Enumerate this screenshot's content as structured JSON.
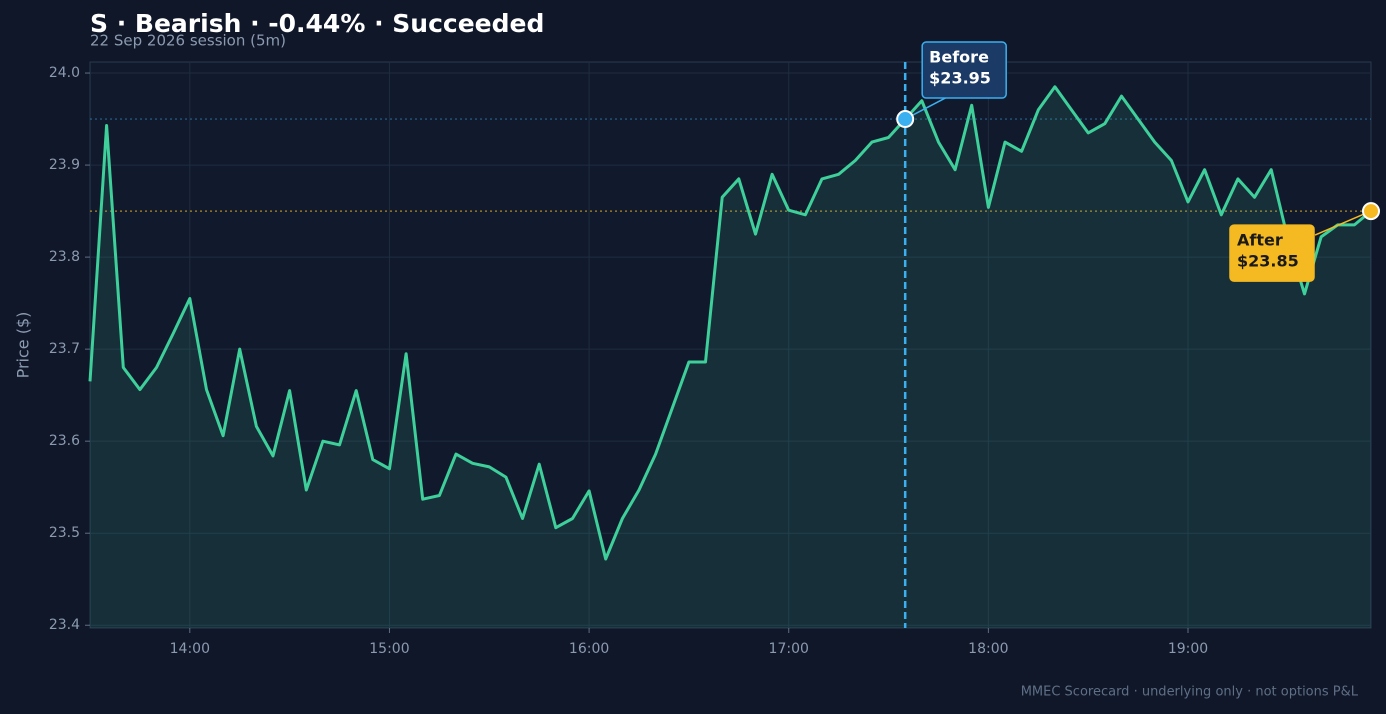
{
  "chart_data": {
    "type": "line",
    "title": "S · Bearish · -0.44% · Succeeded",
    "subtitle": "22 Sep 2026 session (5m)",
    "y_label": "Price ($)",
    "footer": "MMEC Scorecard · underlying only · not options P&L",
    "x": [
      "13:30",
      "13:35",
      "13:40",
      "13:45",
      "13:50",
      "13:55",
      "14:00",
      "14:05",
      "14:10",
      "14:15",
      "14:20",
      "14:25",
      "14:30",
      "14:35",
      "14:40",
      "14:45",
      "14:50",
      "14:55",
      "15:00",
      "15:05",
      "15:10",
      "15:15",
      "15:20",
      "15:25",
      "15:30",
      "15:35",
      "15:40",
      "15:45",
      "15:50",
      "15:55",
      "16:00",
      "16:05",
      "16:10",
      "16:15",
      "16:20",
      "16:25",
      "16:30",
      "16:35",
      "16:40",
      "16:45",
      "16:50",
      "16:55",
      "17:00",
      "17:05",
      "17:10",
      "17:15",
      "17:20",
      "17:25",
      "17:30",
      "17:35",
      "17:40",
      "17:45",
      "17:50",
      "17:55",
      "18:00",
      "18:05",
      "18:10",
      "18:15",
      "18:20",
      "18:25",
      "18:30",
      "18:35",
      "18:40",
      "18:45",
      "18:50",
      "18:55",
      "19:00",
      "19:05",
      "19:10",
      "19:15",
      "19:20",
      "19:25",
      "19:30",
      "19:35",
      "19:40",
      "19:45",
      "19:50",
      "19:55"
    ],
    "series": [
      {
        "name": "S",
        "color": "#3ecf9a",
        "values": [
          23.665,
          23.943,
          23.68,
          23.656,
          23.68,
          23.717,
          23.755,
          23.656,
          23.606,
          23.7,
          23.616,
          23.584,
          23.655,
          23.547,
          23.6,
          23.596,
          23.655,
          23.58,
          23.57,
          23.695,
          23.537,
          23.541,
          23.586,
          23.576,
          23.572,
          23.561,
          23.516,
          23.575,
          23.506,
          23.516,
          23.546,
          23.472,
          23.516,
          23.547,
          23.586,
          23.636,
          23.686,
          23.686,
          23.865,
          23.885,
          23.825,
          23.89,
          23.851,
          23.846,
          23.885,
          23.89,
          23.905,
          23.925,
          23.93,
          23.95,
          23.97,
          23.925,
          23.895,
          23.965,
          23.854,
          23.925,
          23.915,
          23.96,
          23.985,
          23.96,
          23.935,
          23.945,
          23.975,
          23.95,
          23.925,
          23.905,
          23.86,
          23.895,
          23.846,
          23.885,
          23.865,
          23.895,
          23.82,
          23.76,
          23.822,
          23.835,
          23.835,
          23.85
        ]
      }
    ],
    "annotations": [
      {
        "label": "Before",
        "x": "17:35",
        "value": 23.95,
        "value_label": "$23.95",
        "color": "#3bb0f0"
      },
      {
        "label": "After",
        "x": "19:55",
        "value": 23.85,
        "value_label": "$23.85",
        "color": "#f5b921"
      }
    ],
    "xlim": [
      "13:30",
      "19:55"
    ],
    "xticks": [
      "14:00",
      "15:00",
      "16:00",
      "17:00",
      "18:00",
      "19:00"
    ],
    "ylim": [
      23.397,
      24.012
    ],
    "yticks": [
      23.4,
      23.5,
      23.6,
      23.7,
      23.8,
      23.9,
      {
        "value": 24.0,
        "label": "24.0"
      }
    ],
    "grid": true
  }
}
